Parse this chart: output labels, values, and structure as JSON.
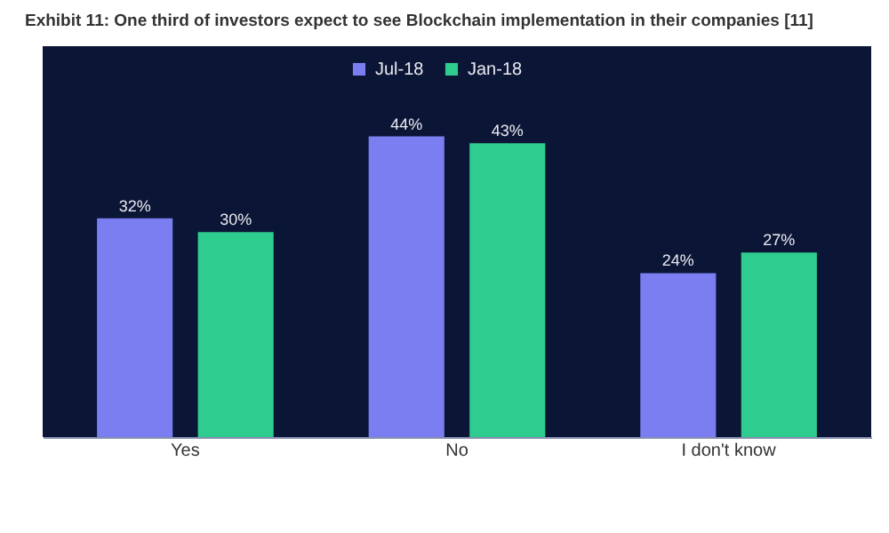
{
  "chart_data": {
    "type": "bar",
    "title": "Exhibit 11: One third of investors expect to see Blockchain implementation in their companies [11]",
    "categories": [
      "Yes",
      "No",
      "I don't know"
    ],
    "series": [
      {
        "name": "Jul-18",
        "color": "#7b7ef0",
        "values": [
          32,
          44,
          24
        ],
        "value_labels": [
          "32%",
          "44%",
          "24%"
        ]
      },
      {
        "name": "Jan-18",
        "color": "#2ecc8f",
        "values": [
          30,
          43,
          27
        ],
        "value_labels": [
          "30%",
          "43%",
          "27%"
        ]
      }
    ],
    "legend": "top",
    "tick_labels": "x",
    "grid": false
  }
}
